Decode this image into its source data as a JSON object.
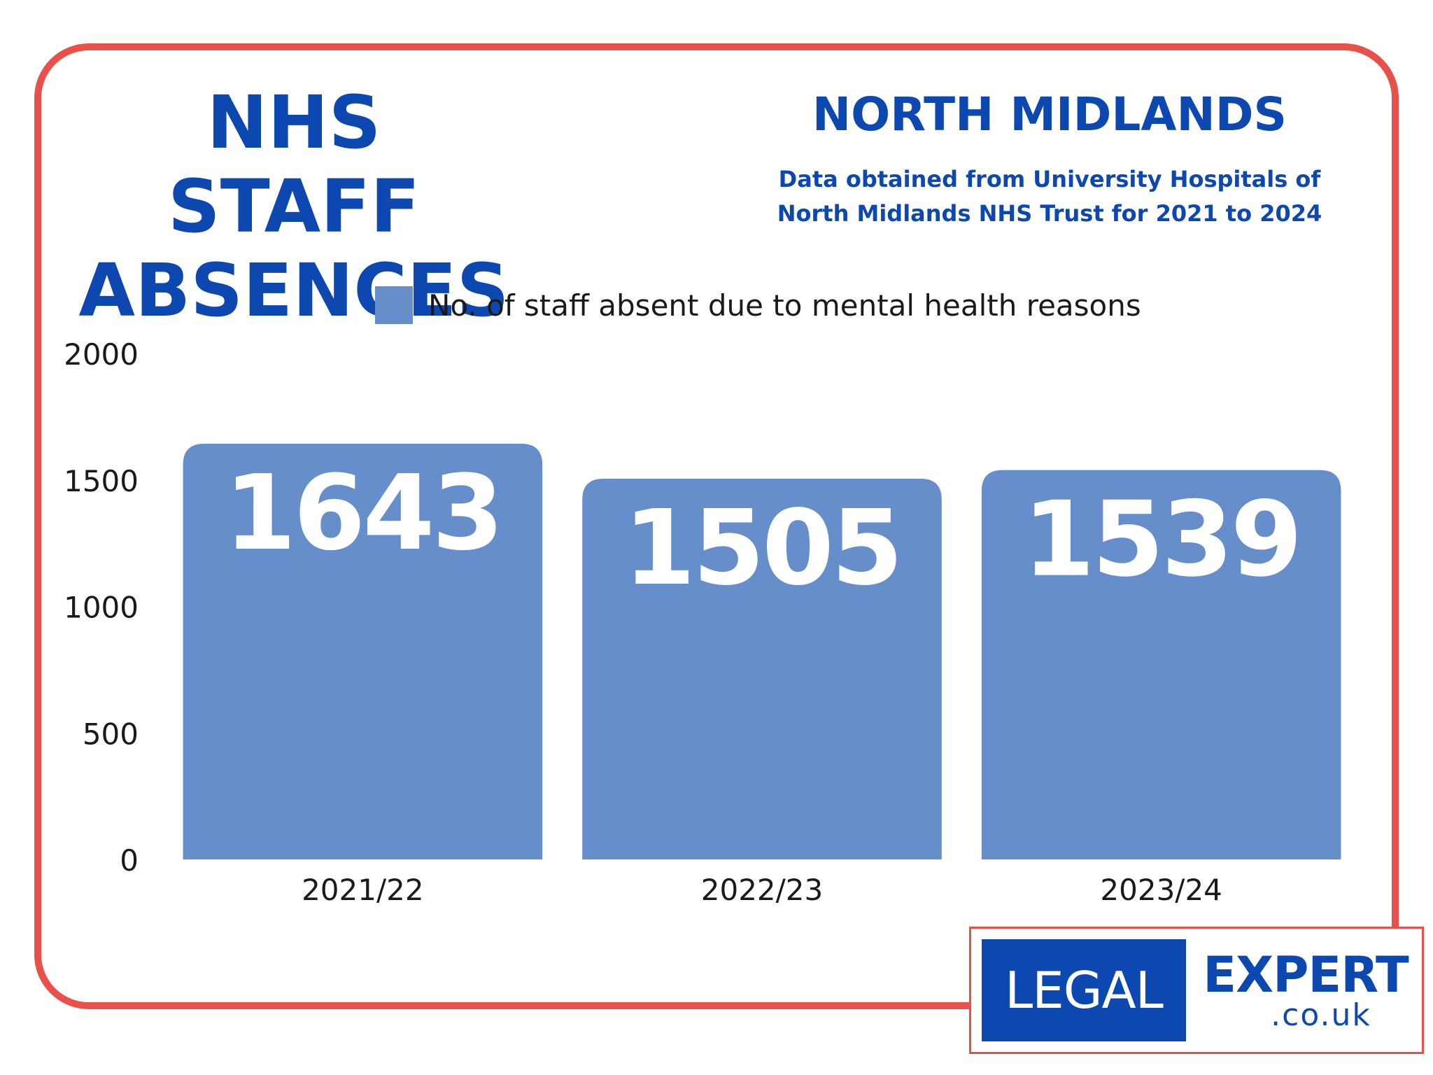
{
  "title": "NHS STAFF ABSENCES",
  "region": "NORTH MIDLANDS",
  "source_note": "Data obtained from University Hospitals of North Midlands NHS Trust for 2021 to 2024",
  "logo": {
    "left_text": "LEGAL",
    "right_text": "EXPERT",
    "domain": ".co.uk"
  },
  "colors": {
    "frame": "#e8504a",
    "title": "#0d47b0",
    "bar": "#658ecb",
    "bar_label": "#ffffff",
    "axis_text": "#1a1a1a"
  },
  "chart_data": {
    "type": "bar",
    "title": "",
    "xlabel": "",
    "ylabel": "",
    "categories": [
      "2021/22",
      "2022/23",
      "2023/24"
    ],
    "series": [
      {
        "name": "No. of staff absent due to mental health reasons",
        "values": [
          1643,
          1505,
          1539
        ]
      }
    ],
    "ylim": [
      0,
      2000
    ],
    "yticks": [
      0,
      500,
      1000,
      1500,
      2000
    ],
    "grid": false,
    "legend": "top-center",
    "data_labels": [
      "1643",
      "1505",
      "1539"
    ]
  }
}
